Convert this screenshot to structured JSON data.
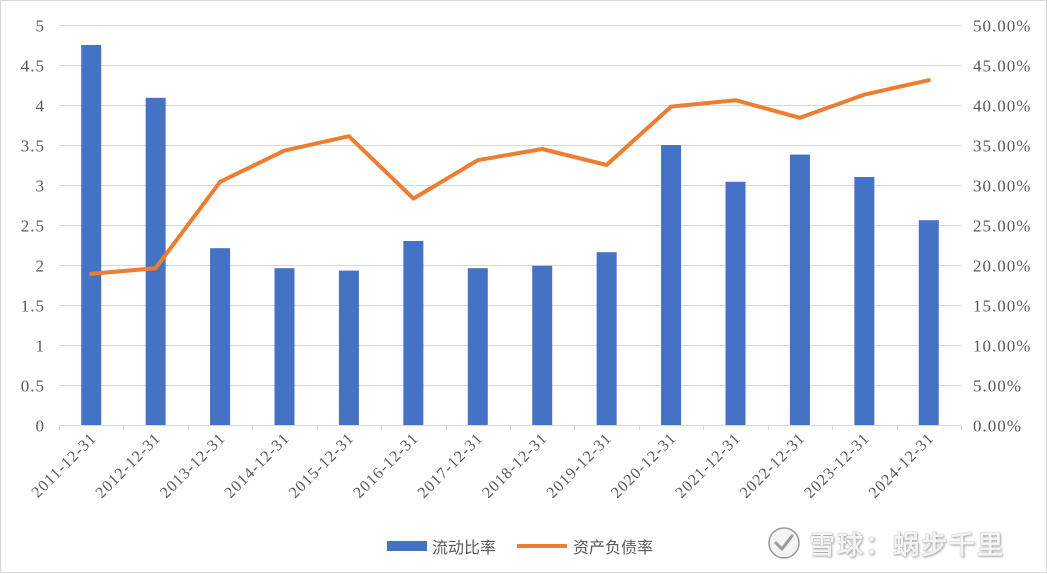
{
  "chart_data": {
    "type": "bar",
    "categories": [
      "2011-12-31",
      "2012-12-31",
      "2013-12-31",
      "2014-12-31",
      "2015-12-31",
      "2016-12-31",
      "2017-12-31",
      "2018-12-31",
      "2019-12-31",
      "2020-12-31",
      "2021-12-31",
      "2022-12-31",
      "2023-12-31",
      "2024-12-31"
    ],
    "series": [
      {
        "name": "流动比率",
        "type": "bar",
        "axis": "left",
        "color": "#4472C4",
        "values": [
          4.75,
          4.09,
          2.21,
          1.96,
          1.93,
          2.3,
          1.96,
          1.99,
          2.16,
          3.5,
          3.04,
          3.38,
          3.1,
          2.56
        ]
      },
      {
        "name": "资产负债率",
        "type": "line",
        "axis": "right",
        "color": "#ED7D31",
        "unit": "%",
        "values": [
          18.9,
          19.6,
          30.4,
          34.3,
          36.1,
          28.3,
          33.1,
          34.5,
          32.5,
          39.8,
          40.6,
          38.4,
          41.3,
          43.1
        ]
      }
    ],
    "ylim": [
      0,
      5
    ],
    "ylim_right": [
      0,
      50
    ],
    "yticks": [
      "0",
      "0.5",
      "1",
      "1.5",
      "2",
      "2.5",
      "3",
      "3.5",
      "4",
      "4.5",
      "5"
    ],
    "yticks_right": [
      "0.00%",
      "5.00%",
      "10.00%",
      "15.00%",
      "20.00%",
      "25.00%",
      "30.00%",
      "35.00%",
      "40.00%",
      "45.00%",
      "50.00%"
    ],
    "grid": true,
    "legend": "bottom-center"
  },
  "watermark": {
    "text": "雪球：蜗步千里"
  },
  "colors": {
    "grid": "#D9D9D9",
    "tick_text": "#595959"
  }
}
